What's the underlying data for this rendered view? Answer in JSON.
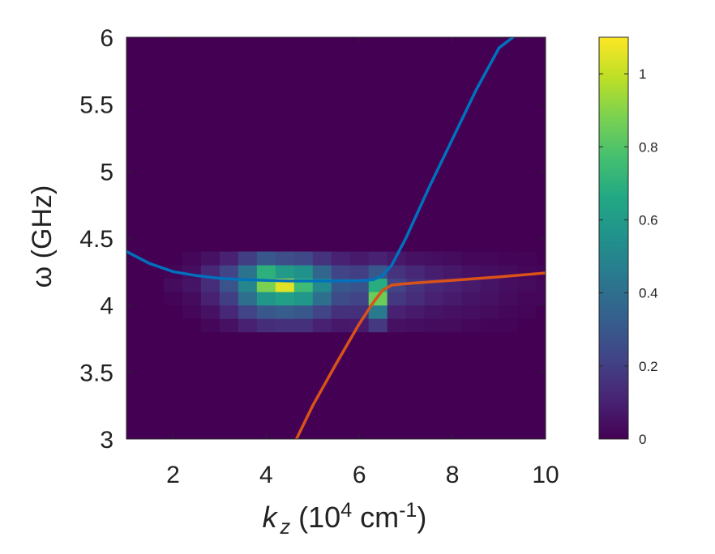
{
  "chart_data": {
    "type": "heatmap",
    "title": "",
    "xlabel": {
      "var": "k",
      "sub": "z",
      "pre": " (10",
      "sup": "4",
      "mid": " cm",
      "sup2": "-1",
      "post": ")"
    },
    "ylabel": "ω  (GHz)",
    "xlim": [
      1,
      10
    ],
    "ylim": [
      3,
      6
    ],
    "xticks": [
      "2",
      "4",
      "6",
      "8",
      "10"
    ],
    "xtick_values": [
      2,
      4,
      6,
      8,
      10
    ],
    "yticks": [
      "3",
      "3.5",
      "4",
      "4.5",
      "5",
      "5.5",
      "6"
    ],
    "ytick_values": [
      3,
      3.5,
      4,
      4.5,
      5,
      5.5,
      6
    ],
    "colormap": "viridis",
    "colorbar": {
      "range": [
        0,
        1.1
      ],
      "ticks": [
        "0",
        "0.2",
        "0.4",
        "0.6",
        "0.8",
        "1"
      ],
      "tick_values": [
        0,
        0.2,
        0.4,
        0.6,
        0.8,
        1
      ]
    },
    "grid": false,
    "heatmap_cells": {
      "x_centers": [
        1.2,
        1.6,
        2.0,
        2.4,
        2.8,
        3.2,
        3.6,
        4.0,
        4.4,
        4.8,
        5.2,
        5.6,
        6.0,
        6.4,
        6.8,
        7.2,
        7.6,
        8.0,
        8.4,
        8.8,
        9.2,
        9.6,
        10.0
      ],
      "y_centers": [
        3.85,
        3.95,
        4.05,
        4.15,
        4.25,
        4.35
      ],
      "values": [
        [
          0.0,
          0.0,
          0.0,
          0.0,
          0.02,
          0.05,
          0.1,
          0.14,
          0.15,
          0.15,
          0.1,
          0.07,
          0.08,
          0.18,
          0.05,
          0.04,
          0.03,
          0.03,
          0.02,
          0.01,
          0.01,
          0.0,
          0.0
        ],
        [
          0.0,
          0.0,
          0.0,
          0.02,
          0.05,
          0.12,
          0.22,
          0.3,
          0.32,
          0.3,
          0.22,
          0.15,
          0.15,
          0.45,
          0.1,
          0.08,
          0.06,
          0.05,
          0.04,
          0.03,
          0.02,
          0.01,
          0.0
        ],
        [
          0.0,
          0.0,
          0.01,
          0.03,
          0.1,
          0.2,
          0.4,
          0.58,
          0.62,
          0.58,
          0.4,
          0.25,
          0.22,
          0.85,
          0.18,
          0.14,
          0.1,
          0.08,
          0.06,
          0.05,
          0.03,
          0.02,
          0.02
        ],
        [
          0.0,
          0.0,
          0.03,
          0.06,
          0.14,
          0.28,
          0.5,
          0.88,
          1.05,
          0.75,
          0.52,
          0.3,
          0.28,
          0.68,
          0.22,
          0.16,
          0.12,
          0.1,
          0.08,
          0.06,
          0.04,
          0.03,
          0.02
        ],
        [
          0.0,
          0.0,
          0.01,
          0.04,
          0.12,
          0.22,
          0.42,
          0.7,
          0.6,
          0.55,
          0.36,
          0.22,
          0.2,
          0.3,
          0.16,
          0.12,
          0.09,
          0.07,
          0.05,
          0.04,
          0.03,
          0.02,
          0.01
        ],
        [
          0.0,
          0.0,
          0.0,
          0.02,
          0.05,
          0.1,
          0.2,
          0.3,
          0.26,
          0.24,
          0.16,
          0.1,
          0.08,
          0.1,
          0.07,
          0.05,
          0.04,
          0.03,
          0.02,
          0.02,
          0.01,
          0.01,
          0.0
        ]
      ]
    },
    "series": [
      {
        "color": "#0072BD",
        "x": [
          1.0,
          1.5,
          2.0,
          2.5,
          3.0,
          3.5,
          4.0,
          4.5,
          5.0,
          5.5,
          6.0,
          6.3,
          6.5,
          6.7,
          7.0,
          7.5,
          8.0,
          8.5,
          9.0,
          9.3
        ],
        "y": [
          4.4,
          4.31,
          4.25,
          4.22,
          4.2,
          4.19,
          4.185,
          4.18,
          4.18,
          4.18,
          4.18,
          4.19,
          4.22,
          4.3,
          4.5,
          4.88,
          5.24,
          5.6,
          5.92,
          6.0
        ]
      },
      {
        "color": "#D95319",
        "x": [
          4.65,
          5.0,
          5.5,
          6.0,
          6.3,
          6.5,
          6.7,
          7.0,
          8.0,
          9.0,
          10.0
        ],
        "y": [
          3.0,
          3.25,
          3.56,
          3.86,
          4.02,
          4.11,
          4.15,
          4.16,
          4.185,
          4.21,
          4.24
        ]
      }
    ]
  }
}
